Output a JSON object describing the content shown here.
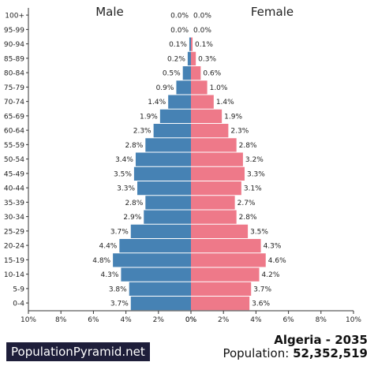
{
  "brand": "PopulationPyramid.net",
  "title": "Algeria - 2035",
  "population_label": "Population:",
  "population_value": "52,352,519",
  "colors": {
    "male": "#4682b4",
    "female": "#ee7989"
  },
  "chart_data": {
    "type": "bar",
    "orientation": "horizontal-pyramid",
    "left_label": "Male",
    "right_label": "Female",
    "categories": [
      "100+",
      "95-99",
      "90-94",
      "85-89",
      "80-84",
      "75-79",
      "70-74",
      "65-69",
      "60-64",
      "55-59",
      "50-54",
      "45-49",
      "40-44",
      "35-39",
      "30-34",
      "25-29",
      "20-24",
      "15-19",
      "10-14",
      "5-9",
      "0-4"
    ],
    "series": [
      {
        "name": "Male",
        "values": [
          0.0,
          0.0,
          0.1,
          0.2,
          0.5,
          0.9,
          1.4,
          1.9,
          2.3,
          2.8,
          3.4,
          3.5,
          3.3,
          2.8,
          2.9,
          3.7,
          4.4,
          4.8,
          4.3,
          3.8,
          3.7
        ]
      },
      {
        "name": "Female",
        "values": [
          0.0,
          0.0,
          0.1,
          0.3,
          0.6,
          1.0,
          1.4,
          1.9,
          2.3,
          2.8,
          3.2,
          3.3,
          3.1,
          2.7,
          2.8,
          3.5,
          4.3,
          4.6,
          4.2,
          3.7,
          3.6
        ]
      }
    ],
    "xlim": [
      0,
      10
    ],
    "x_ticks": [
      "10%",
      "8%",
      "6%",
      "4%",
      "2%",
      "0%",
      "0%",
      "2%",
      "4%",
      "6%",
      "8%",
      "10%"
    ],
    "grid": false
  }
}
